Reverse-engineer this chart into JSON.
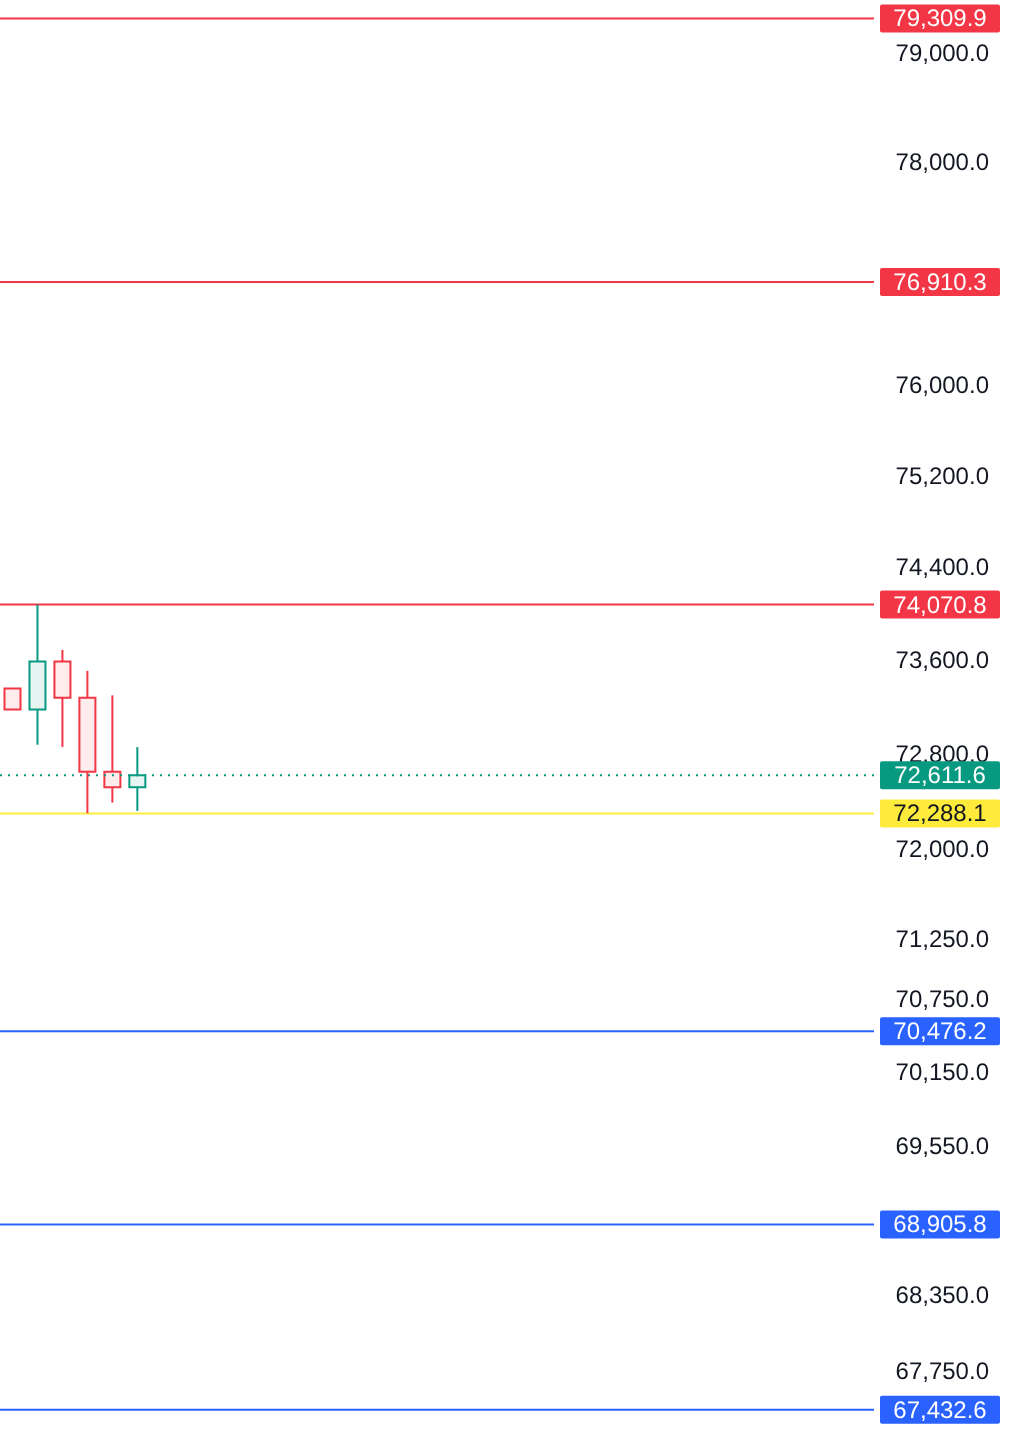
{
  "chart_data": {
    "type": "candlestick",
    "categories": [
      null,
      null,
      null,
      null,
      null,
      null,
      null,
      null,
      null,
      null,
      null,
      null,
      null,
      null,
      null,
      null,
      null,
      null,
      null,
      null,
      null,
      null,
      null,
      null,
      null,
      null,
      null,
      null,
      null,
      null,
      null,
      null,
      null,
      null,
      null
    ],
    "ohlc": [
      [
        73350,
        73350,
        73170,
        73170
      ],
      [
        73170,
        74070,
        72870,
        73580
      ],
      [
        73580,
        73680,
        72850,
        73270
      ],
      [
        73270,
        73500,
        72290,
        72640
      ],
      [
        72640,
        73290,
        72380,
        72510
      ],
      [
        72510,
        72850,
        72310,
        72611.6
      ],
      null,
      null,
      null,
      null,
      null,
      null,
      null,
      null,
      null,
      null,
      null,
      null,
      null,
      null,
      null,
      null,
      null,
      null,
      null,
      null,
      null,
      null,
      null,
      null,
      null,
      null,
      null,
      null,
      null
    ],
    "colors": [
      "#f23645",
      "#089981",
      "#f23645",
      "#f23645",
      "#f23645",
      "#089981",
      null,
      null,
      null,
      null,
      null,
      null,
      null,
      null,
      null,
      null,
      null,
      null,
      null,
      null,
      null,
      null,
      null,
      null,
      null,
      null,
      null,
      null,
      null,
      null,
      null,
      null,
      null,
      null,
      null
    ],
    "ylim": [
      67180,
      79480
    ],
    "yticks": [
      {
        "value": 79000,
        "label": "79,000.0"
      },
      {
        "value": 78000,
        "label": "78,000.0"
      },
      {
        "value": 76000,
        "label": "76,000.0"
      },
      {
        "value": 75200,
        "label": "75,200.0"
      },
      {
        "value": 74400,
        "label": "74,400.0"
      },
      {
        "value": 73600,
        "label": "73,600.0"
      },
      {
        "value": 72800,
        "label": "72,800.0"
      },
      {
        "value": 72000,
        "label": "72,000.0"
      },
      {
        "value": 71250,
        "label": "71,250.0"
      },
      {
        "value": 70750,
        "label": "70,750.0"
      },
      {
        "value": 70150,
        "label": "70,150.0"
      },
      {
        "value": 69550,
        "label": "69,550.0"
      },
      {
        "value": 68350,
        "label": "68,350.0"
      },
      {
        "value": 67750,
        "label": "67,750.0"
      }
    ],
    "log": true,
    "tick_labels": "y",
    "ref_lines": [
      {
        "axis": "y",
        "value": 79309.9,
        "label": "79,309.9",
        "color": "#f23645"
      },
      {
        "axis": "y",
        "value": 76910.3,
        "label": "76,910.3",
        "color": "#f23645"
      },
      {
        "axis": "y",
        "value": 74070.8,
        "label": "74,070.8",
        "color": "#f23645"
      },
      {
        "axis": "y",
        "value": 72611.6,
        "label": "72,611.6",
        "color": "#089981",
        "line_style": "dotted"
      },
      {
        "axis": "y",
        "value": 72288.1,
        "label": "72,288.1",
        "color": "#ffeb3b"
      },
      {
        "axis": "y",
        "value": 70476.2,
        "label": "70,476.2",
        "color": "#2962ff"
      },
      {
        "axis": "y",
        "value": 68905.8,
        "label": "68,905.8",
        "color": "#2962ff"
      },
      {
        "axis": "y",
        "value": 67432.6,
        "label": "67,432.6",
        "color": "#2962ff"
      }
    ]
  }
}
